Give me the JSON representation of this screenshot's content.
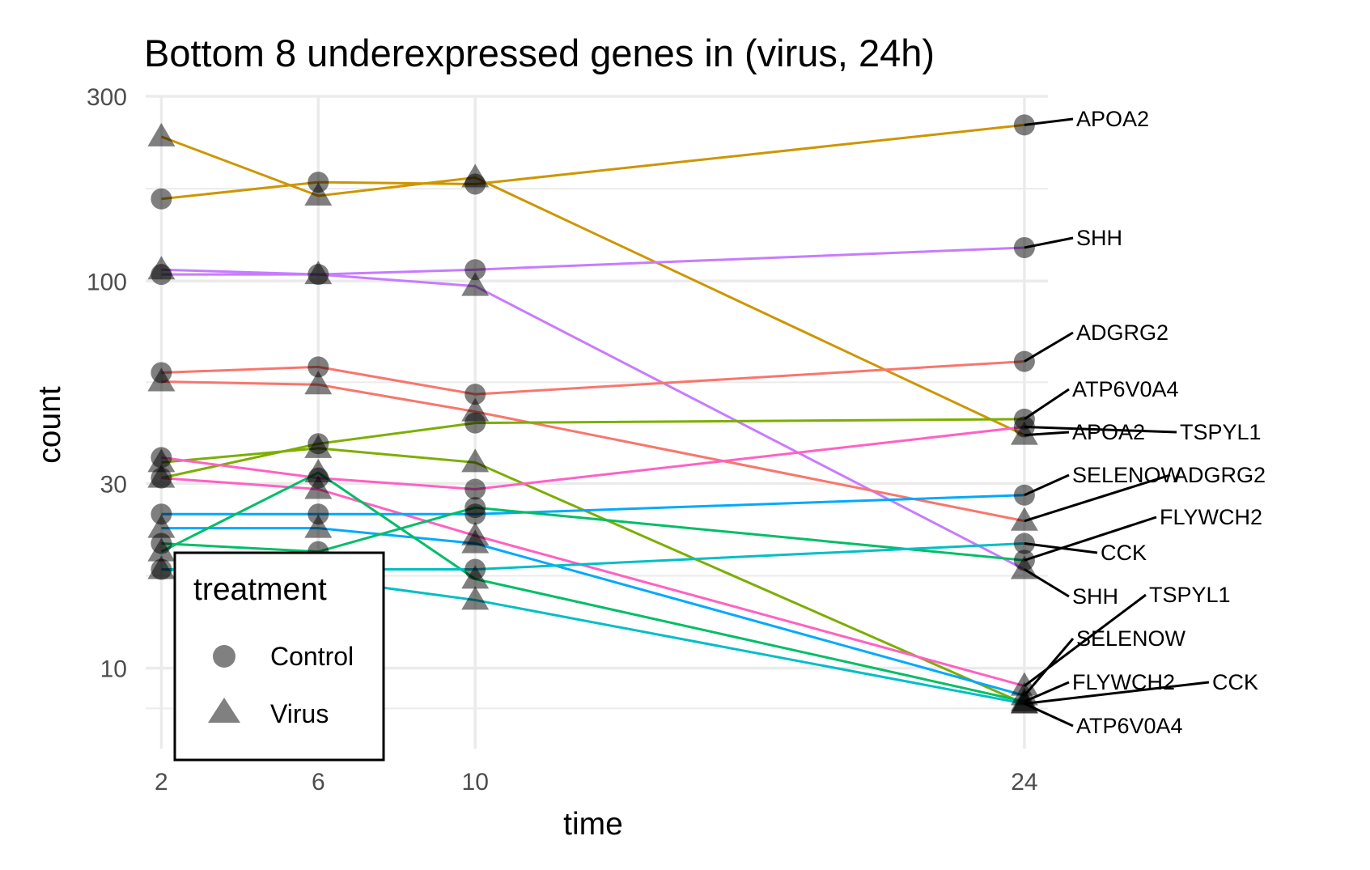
{
  "chart_data": {
    "type": "line",
    "title": "Bottom 8 underexpressed genes in (virus, 24h)",
    "xlabel": "time",
    "ylabel": "count",
    "x_scale": "linear",
    "y_scale": "log10",
    "x_ticks": [
      2,
      6,
      10,
      24
    ],
    "x_tick_labels": [
      "2",
      "6",
      "10",
      "24"
    ],
    "y_ticks": [
      10,
      30,
      100,
      300
    ],
    "y_tick_labels": [
      "10",
      "30",
      "100",
      "300"
    ],
    "xlim": [
      1.6,
      24.6
    ],
    "ylim": [
      6.2,
      300
    ],
    "grid": true,
    "legend": {
      "title": "treatment",
      "position": "bottom-left",
      "entries": [
        {
          "label": "Control",
          "marker": "circle"
        },
        {
          "label": "Virus",
          "marker": "triangle"
        }
      ]
    },
    "x": [
      2,
      6,
      10,
      24
    ],
    "series": [
      {
        "gene": "APOA2",
        "treatment": "Control",
        "color": "#CD9600",
        "values": [
          163,
          180,
          178,
          253
        ]
      },
      {
        "gene": "APOA2",
        "treatment": "Virus",
        "color": "#CD9600",
        "values": [
          236,
          166,
          185,
          40
        ]
      },
      {
        "gene": "SHH",
        "treatment": "Control",
        "color": "#C77CFF",
        "values": [
          104,
          104,
          107,
          122
        ]
      },
      {
        "gene": "SHH",
        "treatment": "Virus",
        "color": "#C77CFF",
        "values": [
          107,
          104,
          97,
          18
        ]
      },
      {
        "gene": "ADGRG2",
        "treatment": "Control",
        "color": "#F8766D",
        "values": [
          58,
          60,
          51,
          62
        ]
      },
      {
        "gene": "ADGRG2",
        "treatment": "Virus",
        "color": "#F8766D",
        "values": [
          55,
          54,
          46,
          24
        ]
      },
      {
        "gene": "ATP6V0A4",
        "treatment": "Control",
        "color": "#7CAE00",
        "values": [
          31,
          38,
          43,
          44
        ]
      },
      {
        "gene": "ATP6V0A4",
        "treatment": "Virus",
        "color": "#7CAE00",
        "values": [
          34,
          37,
          34,
          8.1
        ]
      },
      {
        "gene": "TSPYL1",
        "treatment": "Control",
        "color": "#FF61C3",
        "values": [
          35,
          31,
          29,
          42
        ]
      },
      {
        "gene": "TSPYL1",
        "treatment": "Virus",
        "color": "#FF61C3",
        "values": [
          31,
          29,
          22,
          9.0
        ]
      },
      {
        "gene": "SELENOW",
        "treatment": "Control",
        "color": "#00A9FF",
        "values": [
          25,
          25,
          25,
          28
        ]
      },
      {
        "gene": "SELENOW",
        "treatment": "Virus",
        "color": "#00A9FF",
        "values": [
          23,
          23,
          21,
          8.5
        ]
      },
      {
        "gene": "FLYWCH2",
        "treatment": "Control",
        "color": "#00BE67",
        "values": [
          21,
          20,
          26,
          19
        ]
      },
      {
        "gene": "FLYWCH2",
        "treatment": "Virus",
        "color": "#00BE67",
        "values": [
          20,
          32,
          17,
          8.2
        ]
      },
      {
        "gene": "CCK",
        "treatment": "Control",
        "color": "#00BFC4",
        "values": [
          18,
          18,
          18,
          21
        ]
      },
      {
        "gene": "CCK",
        "treatment": "Virus",
        "color": "#00BFC4",
        "values": [
          18,
          17,
          15,
          8.1
        ]
      }
    ],
    "annotations": [
      {
        "text": "APOA2",
        "target_series": 0
      },
      {
        "text": "SHH",
        "target_series": 2
      },
      {
        "text": "ADGRG2",
        "target_series": 4
      },
      {
        "text": "ATP6V0A4",
        "target_series": 6
      },
      {
        "text": "APOA2",
        "target_series": 1
      },
      {
        "text": "TSPYL1",
        "target_series": 8
      },
      {
        "text": "SELENOW",
        "target_series": 10
      },
      {
        "text": "ADGRG2",
        "target_series": 5
      },
      {
        "text": "FLYWCH2",
        "target_series": 12
      },
      {
        "text": "CCK",
        "target_series": 14
      },
      {
        "text": "SHH",
        "target_series": 3
      },
      {
        "text": "TSPYL1",
        "target_series": 9
      },
      {
        "text": "SELENOW",
        "target_series": 11
      },
      {
        "text": "FLYWCH2",
        "target_series": 13
      },
      {
        "text": "CCK",
        "target_series": 15
      },
      {
        "text": "ATP6V0A4",
        "target_series": 7
      }
    ]
  }
}
